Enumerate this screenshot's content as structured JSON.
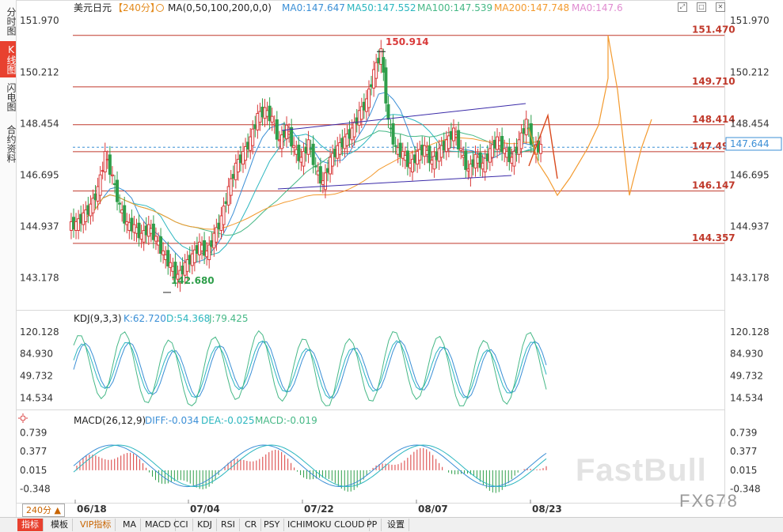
{
  "symbol": "美元日元",
  "period": "【240分】",
  "ma_header": {
    "label": "MA(0,50,100,200,0,0)",
    "items": [
      {
        "text": "MA0:147.647",
        "color": "#3b8fd6"
      },
      {
        "text": "MA50:147.552",
        "color": "#2bb6bf"
      },
      {
        "text": "MA100:147.539",
        "color": "#46b886"
      },
      {
        "text": "MA200:147.748",
        "color": "#f39a2e"
      },
      {
        "text": "MA0:147.6",
        "color": "#e08bd0"
      }
    ]
  },
  "left_tabs": [
    {
      "label": "分时图",
      "active": false
    },
    {
      "label": "K线图",
      "active": true
    },
    {
      "label": "闪电图",
      "active": false
    },
    {
      "label": "合约资料",
      "active": false
    }
  ],
  "price_axis_ticks": [
    "151.970",
    "150.212",
    "148.454",
    "146.695",
    "144.937",
    "143.178"
  ],
  "current_price_tag": "147.644",
  "levels": [
    {
      "value": "151.470"
    },
    {
      "value": "149.710"
    },
    {
      "value": "148.414"
    },
    {
      "value": "147.491"
    },
    {
      "value": "146.147"
    },
    {
      "value": "144.357"
    }
  ],
  "extreme_labels": {
    "high": "150.914",
    "low": "142.680"
  },
  "kdj": {
    "header": "KDJ(9,3,3)",
    "k": "K:62.720",
    "d": "D:54.368",
    "j": "J:79.425",
    "ticks": [
      "120.128",
      "84.930",
      "49.732",
      "14.534"
    ]
  },
  "macd": {
    "header": "MACD(26,12,9)",
    "diff": "DIFF:-0.034",
    "dea": "DEA:-0.025",
    "macd": "MACD:-0.019",
    "ticks": [
      "0.739",
      "0.377",
      "0.015",
      "-0.348"
    ]
  },
  "date_labels": [
    "06/18",
    "07/04",
    "07/22",
    "08/07",
    "08/23"
  ],
  "period_selector": "240分",
  "bottom_tabs": [
    {
      "label": "指标",
      "active": true
    },
    {
      "label": "模板",
      "active": false
    },
    {
      "label": "VIP指标",
      "active": false,
      "vip": true
    },
    {
      "label": "MA",
      "active": false
    },
    {
      "label": "MACD",
      "active": false
    },
    {
      "label": "CCI",
      "active": false
    },
    {
      "label": "KDJ",
      "active": false
    },
    {
      "label": "RSI",
      "active": false
    },
    {
      "label": "CR",
      "active": false
    },
    {
      "label": "PSY",
      "active": false
    },
    {
      "label": "ICHIMOKU CLOUD",
      "active": false
    },
    {
      "label": "PP",
      "active": false
    },
    {
      "label": "设置",
      "active": false
    }
  ],
  "watermark": {
    "brand": "FastBull",
    "code": "FX678"
  },
  "colors": {
    "up": "#d93a3a",
    "down": "#2e9e4a",
    "level": "#c0392b",
    "projection": "#f39a2e",
    "trend": "#3a2aa8"
  },
  "chart_data": {
    "type": "candlestick",
    "title": "美元日元",
    "ylim": [
      142.3,
      152.3
    ],
    "price_axis_ticks": [
      151.97,
      150.212,
      148.454,
      146.695,
      144.937,
      143.178
    ],
    "date_ticks": [
      "06/18",
      "07/04",
      "07/22",
      "08/07",
      "08/23"
    ],
    "extreme_high": 150.914,
    "extreme_low": 142.68,
    "close_trace": [
      145.0,
      145.3,
      145.6,
      146.2,
      147.4,
      146.6,
      145.6,
      145.0,
      144.9,
      144.6,
      144.9,
      144.5,
      144.0,
      143.6,
      143.2,
      143.6,
      143.9,
      144.3,
      144.0,
      144.6,
      145.2,
      146.2,
      147.0,
      147.4,
      147.9,
      148.7,
      148.9,
      148.6,
      147.8,
      148.3,
      147.6,
      147.2,
      147.8,
      146.9,
      146.4,
      147.2,
      147.6,
      147.9,
      148.2,
      148.8,
      149.2,
      150.2,
      150.914,
      148.5,
      147.6,
      147.4,
      147.0,
      147.4,
      147.6,
      147.1,
      147.5,
      147.8,
      148.2,
      147.5,
      146.8,
      147.3,
      147.0,
      147.5,
      147.9,
      147.5,
      147.2,
      147.8,
      148.5,
      147.6,
      147.644
    ],
    "kdj_range": [
      0,
      130
    ],
    "macd_range": [
      -0.55,
      0.85
    ],
    "horizontal_levels": [
      151.47,
      149.71,
      148.414,
      147.491,
      146.147,
      144.357
    ],
    "projection": [
      148.3,
      147.1,
      146.6,
      146.0,
      146.6,
      147.6,
      148.4,
      150.0,
      151.47,
      149.6,
      146.0,
      147.6,
      148.6
    ]
  }
}
